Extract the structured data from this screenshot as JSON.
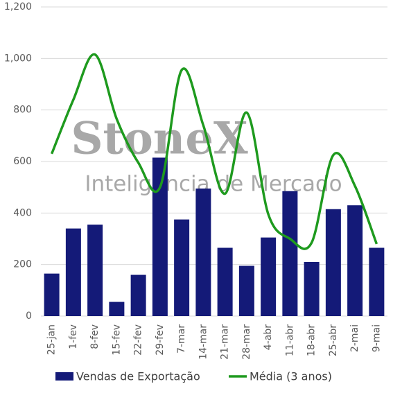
{
  "chart_data": {
    "type": "bar_line",
    "watermark": {
      "brand": "StoneX",
      "subtitle": "Inteligência de Mercado"
    },
    "categories": [
      "25-jan",
      "1-fev",
      "8-fev",
      "15-fev",
      "22-fev",
      "29-fev",
      "7-mar",
      "14-mar",
      "21-mar",
      "28-mar",
      "4-abr",
      "11-abr",
      "18-abr",
      "25-abr",
      "2-mai",
      "9-mai"
    ],
    "series": [
      {
        "name": "Vendas de Exportação",
        "type": "bar",
        "color": "#141a78",
        "values": [
          165,
          340,
          355,
          55,
          160,
          615,
          375,
          495,
          265,
          195,
          305,
          485,
          210,
          415,
          430,
          265
        ]
      },
      {
        "name": "Média (3 anos)",
        "type": "line",
        "color": "#1e9a1e",
        "values": [
          630,
          840,
          1015,
          765,
          595,
          500,
          955,
          740,
          475,
          790,
          395,
          300,
          285,
          625,
          505,
          280
        ]
      }
    ],
    "ylim": [
      0,
      1200
    ],
    "yticks": [
      0,
      200,
      400,
      600,
      800,
      {
        "value": 1000,
        "label": "1,000"
      },
      {
        "value": 1200,
        "label": "1,200"
      }
    ],
    "grid": true,
    "legend": "bottom"
  }
}
